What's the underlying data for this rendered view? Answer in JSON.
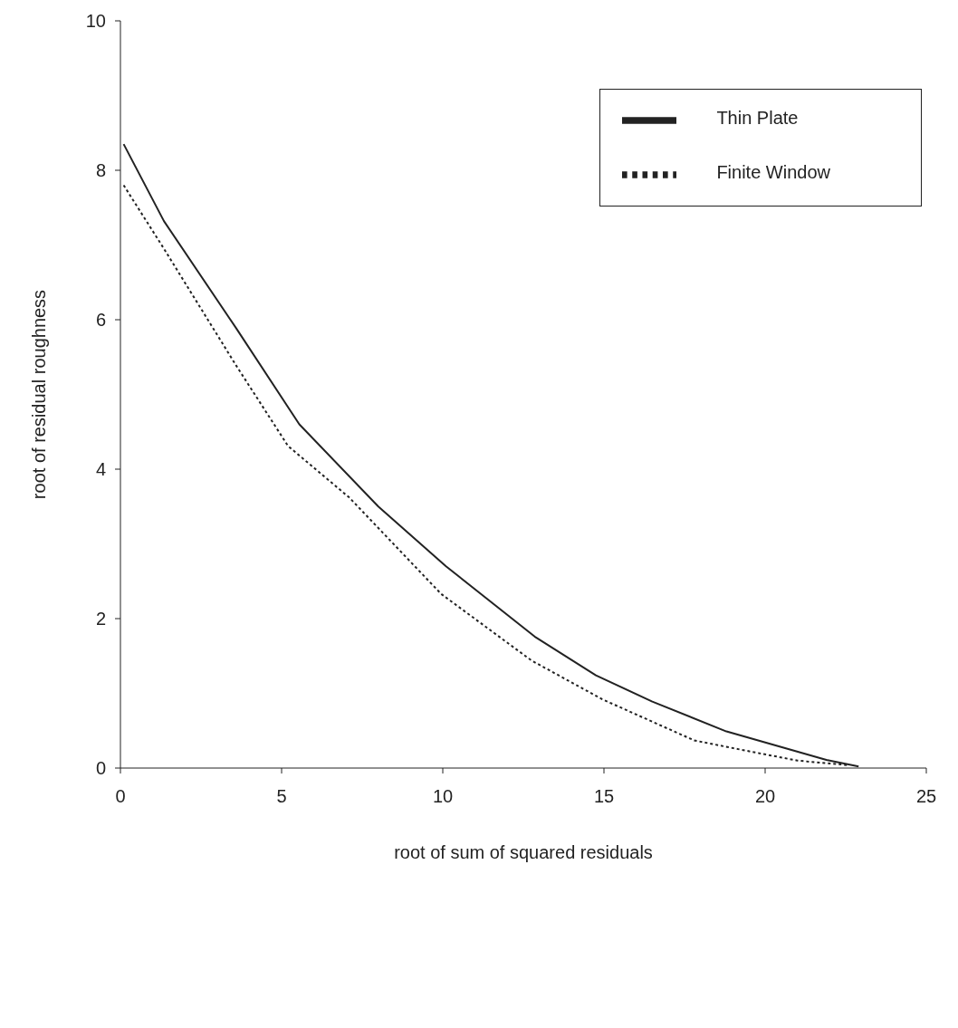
{
  "chart_data": {
    "type": "line",
    "xlabel": "root of sum of squared residuals",
    "ylabel": "root of residual roughness",
    "xlim": [
      0,
      25
    ],
    "xticks": [
      0,
      5,
      10,
      15,
      20,
      25
    ],
    "ylim": [
      0,
      10
    ],
    "yticks": [
      0,
      2,
      4,
      6,
      8,
      10
    ],
    "grid": false,
    "legend": "top right",
    "series": [
      {
        "name": "Thin Plate",
        "color": "#222222",
        "line_style": "solid",
        "x": [
          0.1,
          1.35,
          3.6,
          5.55,
          8.0,
          10.1,
          12.85,
          14.75,
          16.5,
          18.8,
          21.9,
          22.9
        ],
        "values": [
          8.35,
          7.32,
          5.88,
          4.6,
          3.5,
          2.7,
          1.76,
          1.24,
          0.89,
          0.49,
          0.11,
          0.02
        ]
      },
      {
        "name": "Finite Window",
        "color": "#222222",
        "line_style": "dotted",
        "x": [
          0.1,
          1.35,
          3.6,
          5.2,
          7.1,
          9.95,
          12.75,
          14.95,
          17.8,
          19.2,
          21.0,
          22.55
        ],
        "values": [
          7.8,
          6.95,
          5.38,
          4.31,
          3.62,
          2.33,
          1.44,
          0.92,
          0.37,
          0.25,
          0.1,
          0.04
        ]
      }
    ]
  }
}
